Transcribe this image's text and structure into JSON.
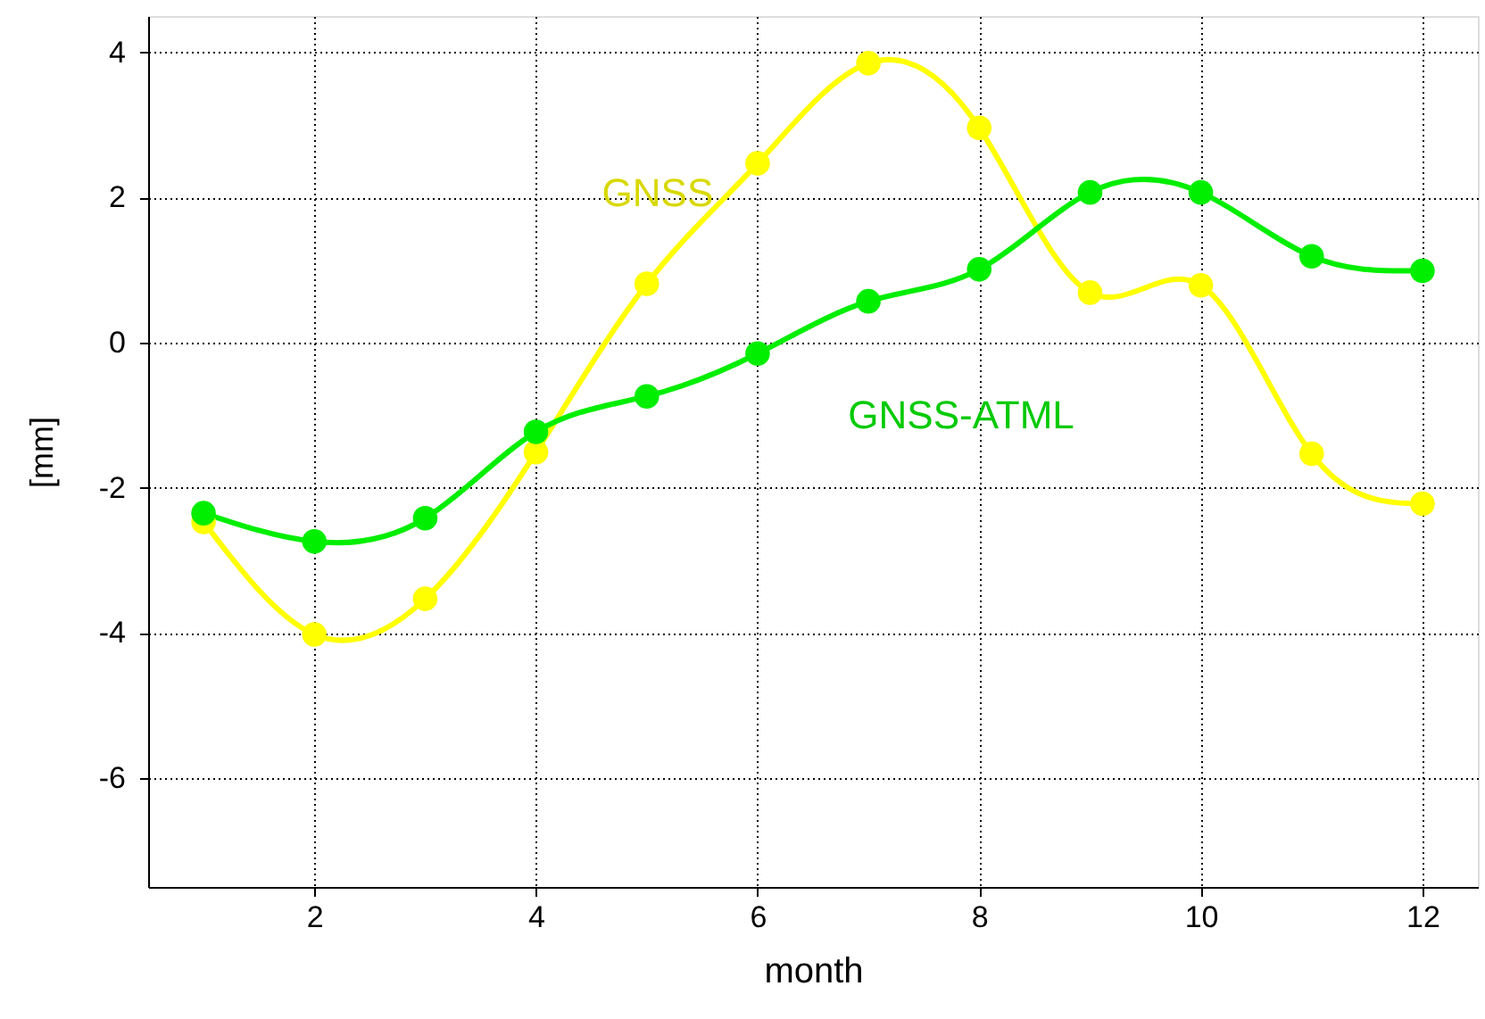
{
  "chart_data": {
    "type": "line",
    "xlabel": "month",
    "ylabel": "[mm]",
    "x": [
      1,
      2,
      3,
      4,
      5,
      6,
      7,
      8,
      9,
      10,
      11,
      12
    ],
    "series": [
      {
        "name": "GNSS",
        "color": "#ffff00",
        "values": [
          -2.47,
          -4.02,
          -3.53,
          -1.51,
          0.81,
          2.47,
          3.85,
          2.96,
          0.69,
          0.79,
          -1.53,
          -2.22
        ]
      },
      {
        "name": "GNSS-ATML",
        "color": "#00ee00",
        "values": [
          -2.35,
          -2.74,
          -2.42,
          -1.23,
          -0.74,
          -0.15,
          0.57,
          1.01,
          2.07,
          2.07,
          1.19,
          0.99
        ]
      }
    ],
    "xlim": [
      0.5,
      12.5
    ],
    "ylim": [
      -7.5,
      4.5
    ],
    "xticks": [
      2,
      4,
      6,
      8,
      10,
      12
    ],
    "yticks": [
      -6,
      -4,
      -2,
      0,
      2,
      4
    ],
    "grid": true,
    "marker": "circle",
    "line_style": "solid"
  }
}
